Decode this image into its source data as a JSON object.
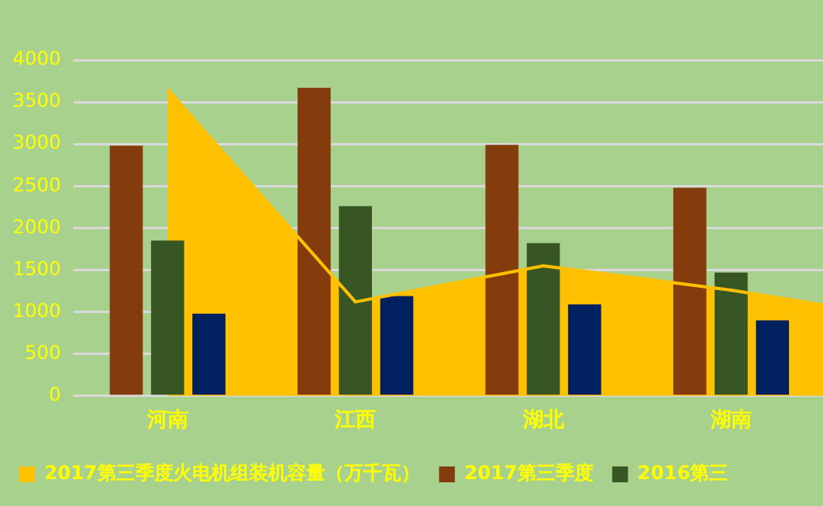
{
  "chart_data": {
    "type": "bar",
    "categories": [
      "河南",
      "江西",
      "湖北",
      "湖南",
      null
    ],
    "series": [
      {
        "name": "2017第三季度火电机组装机容量（万千瓦）",
        "type": "area",
        "color": "#ffc000",
        "values": [
          3650,
          1120,
          1550,
          1260,
          900
        ]
      },
      {
        "name": "2017第三季度",
        "color": "#843c0c",
        "values": [
          2980,
          3670,
          2990,
          2480,
          null
        ]
      },
      {
        "name": "2016第三",
        "color": "#375623",
        "values": [
          1850,
          2260,
          1820,
          1470,
          null
        ]
      },
      {
        "color": "#002060",
        "values": [
          980,
          1190,
          1090,
          900,
          null
        ]
      }
    ],
    "ylim": [
      0,
      4000
    ],
    "yticks": [
      0,
      500,
      1000,
      1500,
      2000,
      2500,
      3000,
      3500,
      4000
    ],
    "grid": "y",
    "legend": "bottom"
  }
}
